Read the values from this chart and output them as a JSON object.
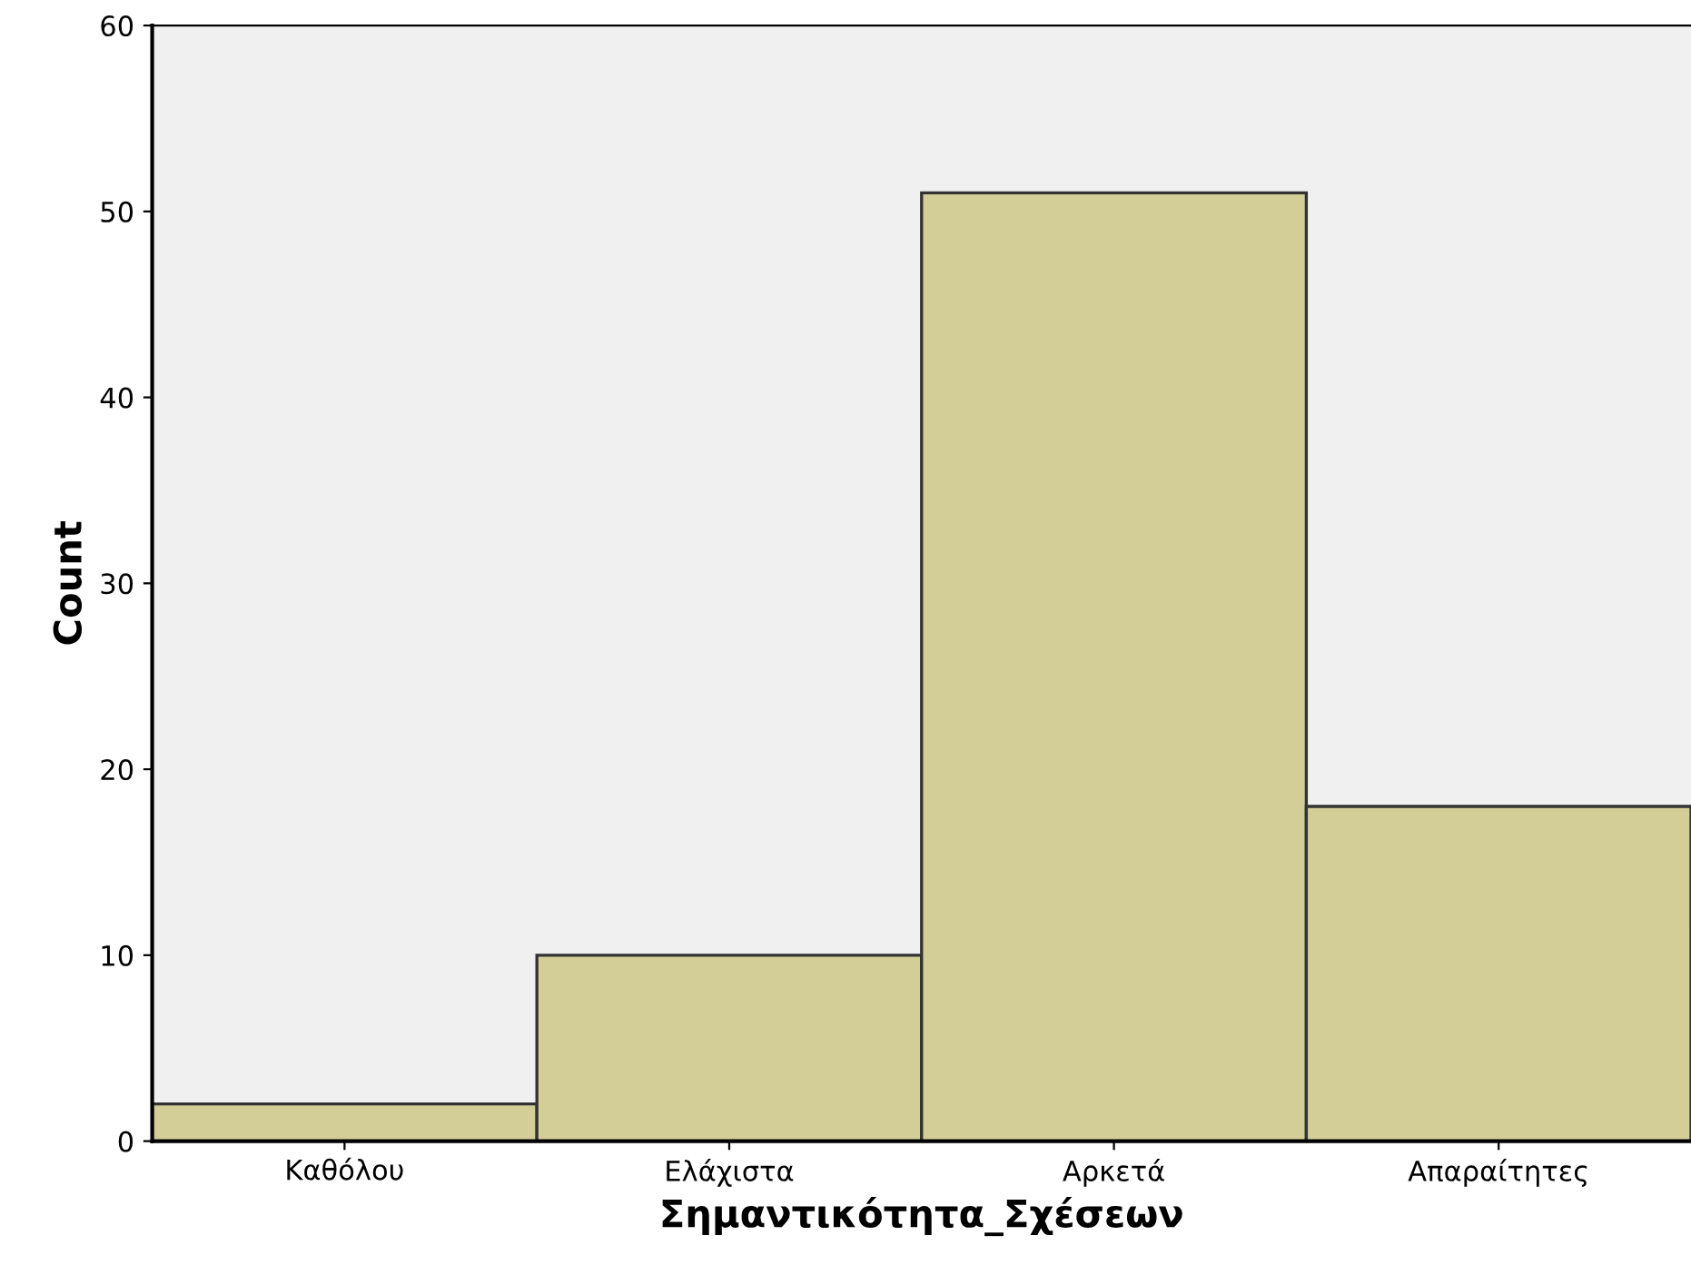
{
  "chart_data": {
    "type": "bar",
    "xlabel": "Σημαντικότητα_Σχέσεων",
    "ylabel": "Count",
    "categories": [
      "Καθόλου",
      "Ελάχιστα",
      "Αρκετά",
      "Απαραίτητες"
    ],
    "values": [
      2,
      10,
      51,
      18
    ],
    "color": "#d3ce98",
    "ylim": [
      0,
      60
    ],
    "yticks": [
      0,
      10,
      20,
      30,
      40,
      50,
      60
    ],
    "grid": false,
    "legend": false
  }
}
